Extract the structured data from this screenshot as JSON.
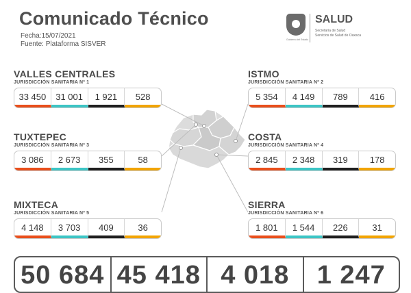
{
  "header": {
    "title": "Comunicado Técnico",
    "date": "Fecha:15/07/2021",
    "source": "Fuente: Plataforma SISVER"
  },
  "logo": {
    "state_caption": "Gobierno del Estado",
    "salud": "SALUD",
    "sub1": "Secretaría de Salud",
    "sub2": "Servicios de Salud de Oaxaca"
  },
  "colors": {
    "c1": "#e94e1b",
    "c2": "#3cc5c5",
    "c3": "#1f1f1f",
    "c4": "#f2a400"
  },
  "regions": {
    "valles": {
      "name": "VALLES CENTRALES",
      "juris": "JURISDICCIÓN SANITARIA Nº 1",
      "values": [
        "33 450",
        "31 001",
        "1 921",
        "528"
      ]
    },
    "istmo": {
      "name": "ISTMO",
      "juris": "JURISDICCIÓN SANITARIA Nº 2",
      "values": [
        "5 354",
        "4 149",
        "789",
        "416"
      ]
    },
    "tuxtepec": {
      "name": "TUXTEPEC",
      "juris": "JURISDICCIÓN SANITARIA Nº 3",
      "values": [
        "3 086",
        "2 673",
        "355",
        "58"
      ]
    },
    "costa": {
      "name": "COSTA",
      "juris": "JURISDICCIÓN SANITARIA Nº 4",
      "values": [
        "2 845",
        "2 348",
        "319",
        "178"
      ]
    },
    "mixteca": {
      "name": "MIXTECA",
      "juris": "JURISDICCIÓN SANITARIA Nº 5",
      "values": [
        "4 148",
        "3 703",
        "409",
        "36"
      ]
    },
    "sierra": {
      "name": "SIERRA",
      "juris": "JURISDICCIÓN SANITARIA Nº 6",
      "values": [
        "1 801",
        "1 544",
        "226",
        "31"
      ]
    }
  },
  "totals": [
    "50 684",
    "45 418",
    "4 018",
    "1 247"
  ]
}
